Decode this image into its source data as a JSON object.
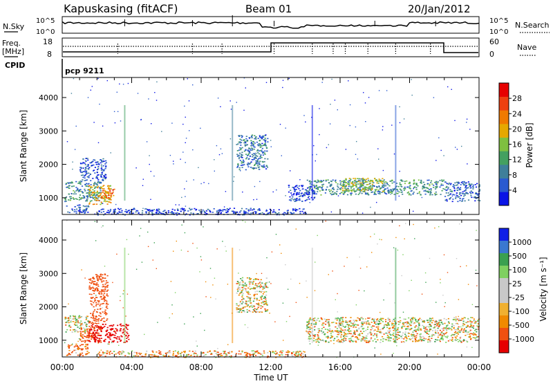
{
  "header": {
    "station": "Kapuskasing (fitACF)",
    "beam": "Beam 01",
    "date": "20/Jan/2012"
  },
  "top_panel": {
    "left_label": "N.Sky",
    "left_tick_top": "10^5",
    "left_tick_bottom": "10^0",
    "right_label": "N.Search",
    "right_tick_top": "10^5",
    "right_tick_bottom": "10^0"
  },
  "freq_panel": {
    "left_label_1": "Freq.",
    "left_label_2": "[MHz]",
    "left_tick_top": "18",
    "left_tick_bottom": "8",
    "right_label": "Nave",
    "right_tick_top": "60",
    "right_tick_bottom": "0"
  },
  "cpid": {
    "label": "CPID",
    "value": "pcp 9211"
  },
  "colors": {
    "power_scale": [
      "#0a14e6",
      "#2a5ad0",
      "#3f7f9a",
      "#44a060",
      "#7fc040",
      "#e6a800",
      "#f07a00",
      "#ee4010",
      "#e60000"
    ],
    "velocity_scale": [
      "#e60000",
      "#f05010",
      "#f08a00",
      "#f0b030",
      "#c8c8c8",
      "#c8c8c8",
      "#7fd060",
      "#3aa050",
      "#3a78d0",
      "#1020e6"
    ]
  },
  "chart_data": [
    {
      "type": "heatmap",
      "name": "power",
      "ylabel": "Slant Range [km]",
      "yticks": [
        "1000",
        "2000",
        "3000",
        "4000"
      ],
      "ylim": [
        500,
        4600
      ],
      "colorbar_label": "Power [dB]",
      "colorbar_ticks": [
        "4",
        "8",
        "12",
        "16",
        "20",
        "24",
        "28"
      ],
      "clim": [
        0,
        32
      ],
      "x_hours_range": [
        0,
        24
      ],
      "regions": [
        {
          "t0": 0.1,
          "t1": 2.2,
          "r0": 900,
          "r1": 1500,
          "level": 10
        },
        {
          "t0": 1.5,
          "t1": 2.8,
          "r0": 800,
          "r1": 1400,
          "level": 20
        },
        {
          "t0": 2.2,
          "t1": 3.0,
          "r0": 1000,
          "r1": 1300,
          "level": 24
        },
        {
          "t0": 0.2,
          "t1": 1.5,
          "r0": 550,
          "r1": 800,
          "level": 6
        },
        {
          "t0": 1.0,
          "t1": 2.5,
          "r0": 1500,
          "r1": 2200,
          "level": 5
        },
        {
          "t0": 10.0,
          "t1": 11.8,
          "r0": 1850,
          "r1": 2900,
          "level": 8
        },
        {
          "t0": 14.0,
          "t1": 22.0,
          "r0": 1100,
          "r1": 1550,
          "level": 10
        },
        {
          "t0": 16.0,
          "t1": 18.5,
          "r0": 1200,
          "r1": 1600,
          "level": 16
        },
        {
          "t0": 22.0,
          "t1": 24.0,
          "r0": 900,
          "r1": 1500,
          "level": 6
        },
        {
          "t0": 13.0,
          "t1": 14.5,
          "r0": 900,
          "r1": 1400,
          "level": 4
        },
        {
          "t0": 2.0,
          "t1": 14.0,
          "r0": 500,
          "r1": 700,
          "level": 4
        }
      ]
    },
    {
      "type": "heatmap",
      "name": "velocity",
      "ylabel": "Slant Range [km]",
      "yticks": [
        "1000",
        "2000",
        "3000",
        "4000"
      ],
      "ylim": [
        500,
        4600
      ],
      "colorbar_label": "Velocity [m s⁻¹]",
      "colorbar_ticks": [
        "1000",
        "500",
        "100",
        "25",
        "-25",
        "-100",
        "-500",
        "-1000"
      ],
      "x_hours_range": [
        0,
        24
      ],
      "regions": [
        {
          "t0": 0.1,
          "t1": 1.5,
          "r0": 1250,
          "r1": 1750,
          "level": 0
        },
        {
          "t0": 1.0,
          "t1": 2.2,
          "r0": 950,
          "r1": 1450,
          "level": -200
        },
        {
          "t0": 1.5,
          "t1": 3.8,
          "r0": 950,
          "r1": 1500,
          "level": -700
        },
        {
          "t0": 0.2,
          "t1": 1.5,
          "r0": 550,
          "r1": 900,
          "level": -150
        },
        {
          "t0": 1.5,
          "t1": 2.6,
          "r0": 1500,
          "r1": 3000,
          "level": -300
        },
        {
          "t0": 10.0,
          "t1": 11.8,
          "r0": 1850,
          "r1": 2900,
          "level": 0
        },
        {
          "t0": 14.0,
          "t1": 24.0,
          "r0": 950,
          "r1": 1700,
          "level": 0
        },
        {
          "t0": 2.0,
          "t1": 14.0,
          "r0": 500,
          "r1": 700,
          "level": -60
        }
      ]
    }
  ],
  "x_axis": {
    "ticks": [
      "00:00",
      "04:00",
      "08:00",
      "12:00",
      "16:00",
      "20:00",
      "00:00"
    ],
    "label": "Time UT"
  }
}
